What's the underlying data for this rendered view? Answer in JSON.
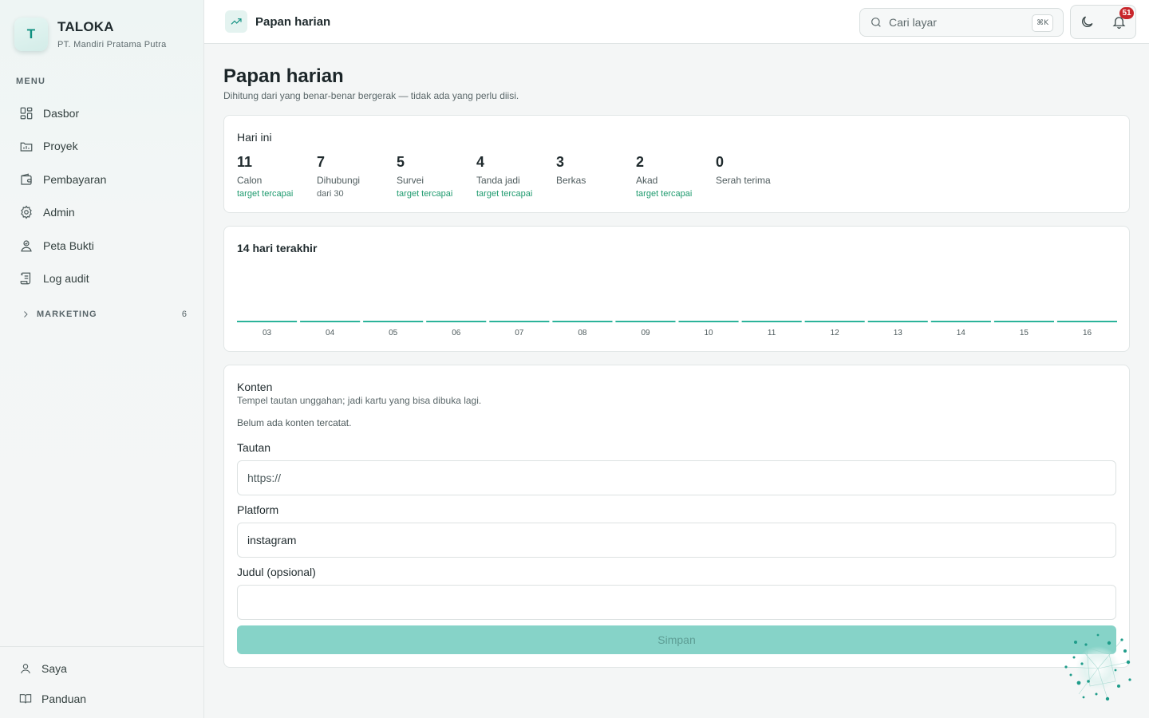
{
  "brand": {
    "initial": "T",
    "name": "TALOKA",
    "company": "PT. Mandiri Pratama Putra"
  },
  "sidebar": {
    "menu_label": "MENU",
    "items": [
      {
        "label": "Dasbor",
        "icon": "dashboard-icon"
      },
      {
        "label": "Proyek",
        "icon": "project-icon"
      },
      {
        "label": "Pembayaran",
        "icon": "wallet-icon"
      },
      {
        "label": "Admin",
        "icon": "gear-icon"
      },
      {
        "label": "Peta Bukti",
        "icon": "map-user-icon"
      },
      {
        "label": "Log audit",
        "icon": "scroll-icon"
      }
    ],
    "group": {
      "label": "MARKETING",
      "count": "6"
    },
    "bottom": [
      {
        "label": "Saya",
        "icon": "user-icon"
      },
      {
        "label": "Panduan",
        "icon": "book-icon"
      }
    ]
  },
  "topbar": {
    "title": "Papan harian",
    "search_placeholder": "Cari layar",
    "search_shortcut": "⌘K",
    "notification_count": "51"
  },
  "page": {
    "title": "Papan harian",
    "subtitle": "Dihitung dari yang benar-benar bergerak — tidak ada yang perlu diisi."
  },
  "today": {
    "title": "Hari ini",
    "stats": [
      {
        "value": "11",
        "label": "Calon",
        "note": "target tercapai",
        "achieved": true
      },
      {
        "value": "7",
        "label": "Dihubungi",
        "note": "dari 30",
        "achieved": false
      },
      {
        "value": "5",
        "label": "Survei",
        "note": "target tercapai",
        "achieved": true
      },
      {
        "value": "4",
        "label": "Tanda jadi",
        "note": "target tercapai",
        "achieved": true
      },
      {
        "value": "3",
        "label": "Berkas",
        "note": "",
        "achieved": false
      },
      {
        "value": "2",
        "label": "Akad",
        "note": "target tercapai",
        "achieved": true
      },
      {
        "value": "0",
        "label": "Serah terima",
        "note": "",
        "achieved": false
      }
    ]
  },
  "chart_data": {
    "type": "bar",
    "title": "14 hari terakhir",
    "categories": [
      "03",
      "04",
      "05",
      "06",
      "07",
      "08",
      "09",
      "10",
      "11",
      "12",
      "13",
      "14",
      "15",
      "16"
    ],
    "values": [
      0,
      0,
      0,
      0,
      0,
      0,
      0,
      0,
      0,
      0,
      0,
      0,
      0,
      0
    ],
    "bar_color": "#2bb39a",
    "grid": false
  },
  "konten": {
    "title": "Konten",
    "subtitle": "Tempel tautan unggahan; jadi kartu yang bisa dibuka lagi.",
    "empty_text": "Belum ada konten tercatat.",
    "link_label": "Tautan",
    "link_placeholder": "https://",
    "platform_label": "Platform",
    "platform_value": "instagram",
    "title_label": "Judul (opsional)",
    "title_value": "",
    "save_label": "Simpan"
  },
  "colors": {
    "accent": "#159384",
    "success": "#1e9a6e",
    "badge": "#c8262b",
    "button": "#86d3c8"
  }
}
